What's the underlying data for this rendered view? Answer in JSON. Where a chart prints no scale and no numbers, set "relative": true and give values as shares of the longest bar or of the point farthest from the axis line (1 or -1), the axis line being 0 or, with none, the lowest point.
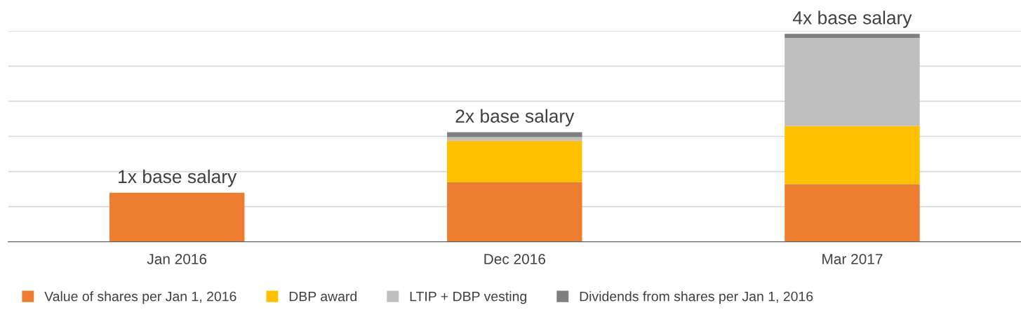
{
  "chart_data": {
    "type": "bar",
    "stacked": true,
    "relative": true,
    "grid": "y",
    "legend": "bottom",
    "categories": [
      "Jan 2016",
      "Dec 2016",
      "Mar 2017"
    ],
    "series": [
      {
        "name": "Value of shares per Jan 1, 2016",
        "color": "#ed7d31",
        "values": [
          0.236,
          0.287,
          0.277
        ]
      },
      {
        "name": "DBP award",
        "color": "#ffc000",
        "values": [
          null,
          0.199,
          0.28
        ]
      },
      {
        "name": "LTIP + DBP vesting",
        "color": "#bfbfbf",
        "values": [
          null,
          0.017,
          0.423
        ]
      },
      {
        "name": "Dividends from shares per Jan 1, 2016",
        "color": "#7f7f7f",
        "values": [
          null,
          0.024,
          0.02
        ]
      }
    ],
    "annotations": [
      {
        "text": "1x base salary",
        "x": "Jan 2016",
        "y": 0.236
      },
      {
        "text": "2x base salary",
        "x": "Dec 2016",
        "y": 0.527
      },
      {
        "text": "4x base salary",
        "x": "Mar 2017",
        "y": 1.0
      }
    ]
  }
}
